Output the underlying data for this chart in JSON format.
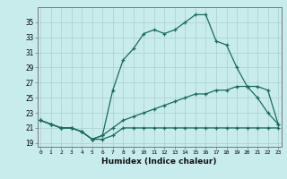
{
  "xlabel": "Humidex (Indice chaleur)",
  "bg_color": "#c8ecec",
  "line_color": "#1a6b5a",
  "grid_color": "#b0d4d4",
  "series": [
    {
      "x": [
        0,
        1,
        2,
        3,
        4,
        5,
        6,
        7,
        8,
        9,
        10,
        11,
        12,
        13,
        14,
        15,
        16,
        17,
        18,
        19,
        20,
        21,
        22,
        23
      ],
      "y": [
        22,
        21.5,
        21,
        21,
        20.5,
        19.5,
        19.5,
        20,
        21,
        21,
        21,
        21,
        21,
        21,
        21,
        21,
        21,
        21,
        21,
        21,
        21,
        21,
        21,
        21
      ]
    },
    {
      "x": [
        0,
        1,
        2,
        3,
        4,
        5,
        6,
        7,
        8,
        9,
        10,
        11,
        12,
        13,
        14,
        15,
        16,
        17,
        18,
        19,
        20,
        21,
        22,
        23
      ],
      "y": [
        22,
        21.5,
        21,
        21,
        20.5,
        19.5,
        20,
        21,
        22,
        22.5,
        23,
        23.5,
        24,
        24.5,
        25,
        25.5,
        25.5,
        26,
        26,
        26.5,
        26.5,
        26.5,
        26,
        21.5
      ]
    },
    {
      "x": [
        0,
        1,
        2,
        3,
        4,
        5,
        6,
        7,
        8,
        9,
        10,
        11,
        12,
        13,
        14,
        15,
        16,
        17,
        18,
        19,
        20,
        21,
        22,
        23
      ],
      "y": [
        22,
        21.5,
        21,
        21,
        20.5,
        19.5,
        20,
        26,
        30,
        31.5,
        33.5,
        34,
        33.5,
        34,
        35,
        36,
        36,
        32.5,
        32,
        29,
        26.5,
        25,
        23,
        21.5
      ]
    }
  ],
  "yticks": [
    19,
    21,
    23,
    25,
    27,
    29,
    31,
    33,
    35
  ],
  "xticks": [
    0,
    1,
    2,
    3,
    4,
    5,
    6,
    7,
    8,
    9,
    10,
    11,
    12,
    13,
    14,
    15,
    16,
    17,
    18,
    19,
    20,
    21,
    22,
    23
  ],
  "ylim": [
    18.5,
    37
  ],
  "xlim": [
    -0.3,
    23.3
  ]
}
